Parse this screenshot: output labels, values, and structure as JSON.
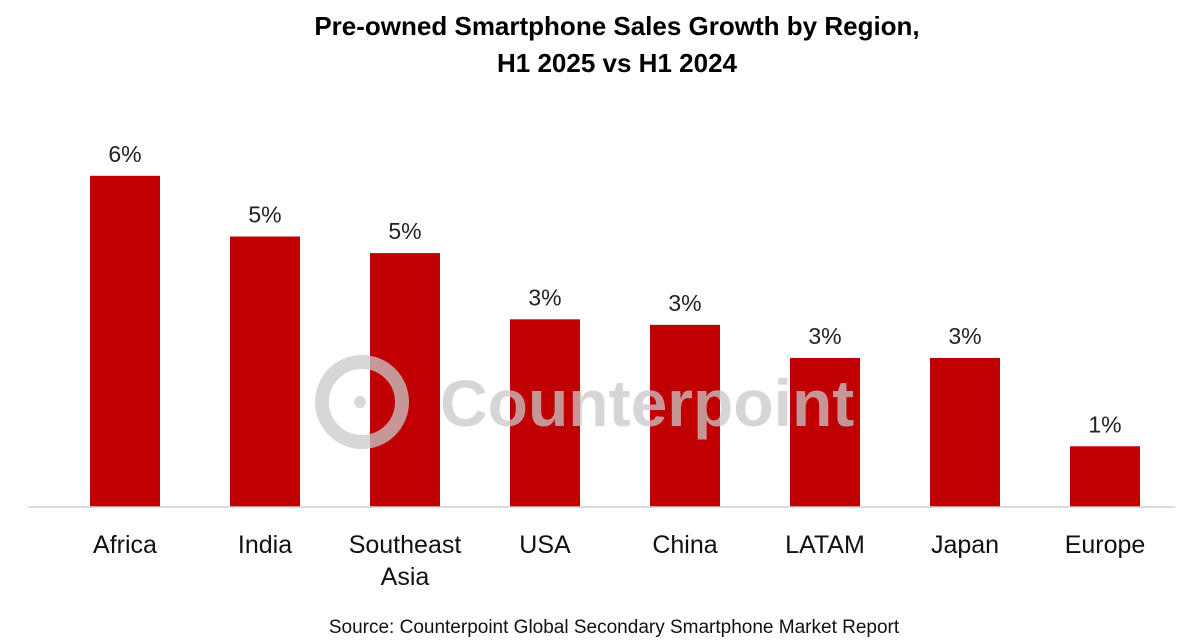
{
  "chart_data": {
    "type": "bar",
    "title": [
      "Pre-owned Smartphone Sales Growth by Region,",
      "H1 2025 vs H1 2024"
    ],
    "categories": [
      [
        "Africa"
      ],
      [
        "India"
      ],
      [
        "Southeast",
        "Asia"
      ],
      [
        "USA"
      ],
      [
        "China"
      ],
      [
        "LATAM"
      ],
      [
        "Japan"
      ],
      [
        "Europe"
      ]
    ],
    "values": [
      6.0,
      4.9,
      4.6,
      3.4,
      3.3,
      2.7,
      2.7,
      1.1
    ],
    "data_labels": [
      "6%",
      "5%",
      "5%",
      "3%",
      "3%",
      "3%",
      "3%",
      "1%"
    ],
    "unit": "%",
    "ylim": [
      0,
      6.5
    ],
    "grid": false,
    "legend": "none",
    "bar_color": "#c00000",
    "source": "Source: Counterpoint Global Secondary Smartphone Market Report",
    "watermark": "Counterpoint"
  }
}
